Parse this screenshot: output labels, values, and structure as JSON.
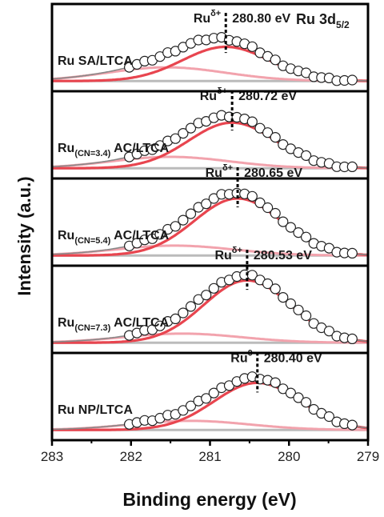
{
  "chart_data": {
    "type": "line",
    "title": "Ru 3d5/2",
    "title_main": "Ru 3d",
    "title_sub": "5/2",
    "xlabel": "Binding energy (eV)",
    "ylabel": "Intensity (a.u.)",
    "xlim": [
      283,
      279
    ],
    "x_reversed": true,
    "xticks": [
      283,
      282,
      281,
      280,
      279
    ],
    "grid": false,
    "colors": {
      "main_peak": "#e8454f",
      "sat_peak": "#f2a3ad",
      "envelope": "#888888",
      "baseline": "#bbbbbb",
      "marker_edge": "#222222",
      "frame": "#000000"
    },
    "panels": [
      {
        "name_main": "Ru SA/LTCA",
        "name_sub": "",
        "name_suffix": "",
        "state_base": "Ru",
        "state_sup": "δ+",
        "peak_label": "280.80 eV",
        "peak_x": 280.8,
        "peak_height": 0.45,
        "peak_width": 0.55,
        "sat_x": 281.55,
        "sat_height": 0.18,
        "sat_width": 0.75,
        "baseline": 0.05
      },
      {
        "name_main": "Ru",
        "name_sub": "(CN=3.4)",
        "name_suffix": " AC/LTCA",
        "state_base": "Ru",
        "state_sup": "δ+",
        "peak_label": "280.72 eV",
        "peak_x": 280.72,
        "peak_height": 0.6,
        "peak_width": 0.55,
        "sat_x": 281.5,
        "sat_height": 0.15,
        "sat_width": 0.75,
        "baseline": 0.05
      },
      {
        "name_main": "Ru",
        "name_sub": "(CN=5.4)",
        "name_suffix": " AC/LTCA",
        "state_base": "Ru",
        "state_sup": "δ+",
        "peak_label": "280.65 eV",
        "peak_x": 280.65,
        "peak_height": 0.75,
        "peak_width": 0.55,
        "sat_x": 281.45,
        "sat_height": 0.13,
        "sat_width": 0.75,
        "baseline": 0.05
      },
      {
        "name_main": "Ru",
        "name_sub": "(CN=7.3)",
        "name_suffix": " AC/LTCA",
        "state_base": "Ru",
        "state_sup": "δ+",
        "peak_label": "280.53 eV",
        "peak_x": 280.53,
        "peak_height": 0.82,
        "peak_width": 0.55,
        "sat_x": 281.35,
        "sat_height": 0.12,
        "sat_width": 0.75,
        "baseline": 0.05
      },
      {
        "name_main": "Ru NP/LTCA",
        "name_sub": "",
        "name_suffix": "",
        "state_base": "Ru",
        "state_sup": "0",
        "peak_label": "280.40 eV",
        "peak_x": 280.4,
        "peak_height": 0.62,
        "peak_width": 0.55,
        "sat_x": 281.25,
        "sat_height": 0.12,
        "sat_width": 0.75,
        "baseline": 0.05
      }
    ]
  }
}
